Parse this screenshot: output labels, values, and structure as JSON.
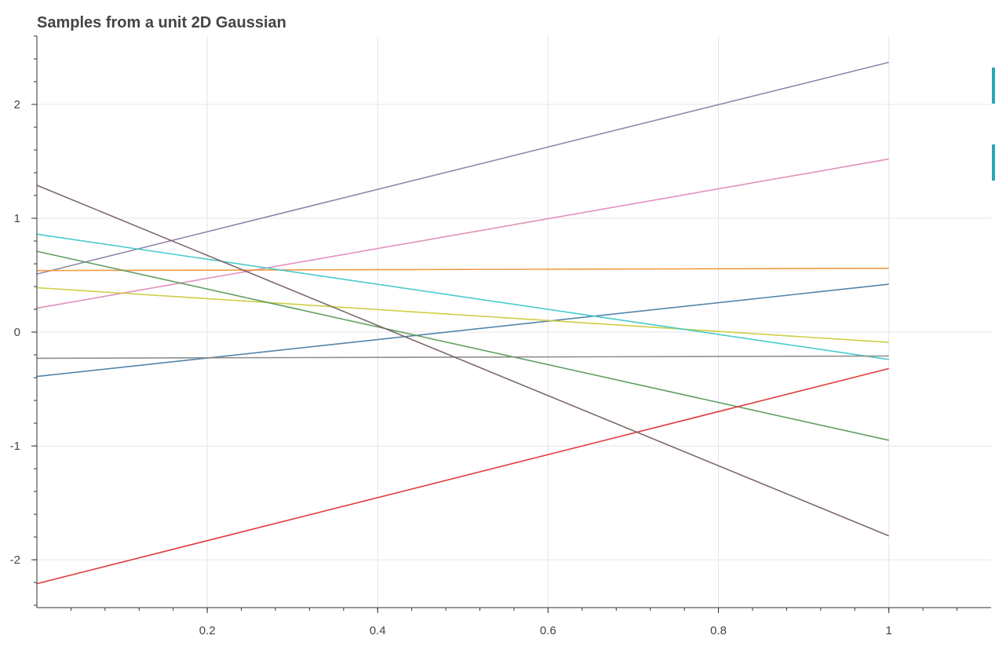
{
  "chart_data": {
    "type": "line",
    "title": "Samples from a unit 2D Gaussian",
    "xlabel": "",
    "ylabel": "",
    "xlim": [
      0.0,
      1.12
    ],
    "ylim": [
      -2.42,
      2.6
    ],
    "grid": true,
    "legend": "none",
    "x_ticks": [
      0.2,
      0.4,
      0.6,
      0.8,
      1
    ],
    "x_tick_labels": [
      "0.2",
      "0.4",
      "0.6",
      "0.8",
      "1"
    ],
    "y_ticks": [
      -2,
      -1,
      0,
      1,
      2
    ],
    "y_tick_labels": [
      "-2",
      "-1",
      "0",
      "1",
      "2"
    ],
    "x": [
      0.0,
      1.0
    ],
    "series": [
      {
        "color": "#8c7fa6",
        "values": [
          0.51,
          2.37
        ]
      },
      {
        "color": "#e08ab8",
        "values": [
          0.21,
          1.52
        ]
      },
      {
        "color": "#f0973c",
        "values": [
          0.54,
          0.56
        ]
      },
      {
        "color": "#4a7fa8",
        "values": [
          -0.39,
          0.42
        ]
      },
      {
        "color": "#cbcb3a",
        "values": [
          0.39,
          -0.09
        ]
      },
      {
        "color": "#3ec8c8",
        "values": [
          0.86,
          -0.24
        ]
      },
      {
        "color": "#5a9a5a",
        "values": [
          0.71,
          -0.95
        ]
      },
      {
        "color": "#888888",
        "values": [
          -0.23,
          -0.21
        ]
      },
      {
        "color": "#e03030",
        "values": [
          -2.21,
          -0.32
        ]
      },
      {
        "color": "#7a6262",
        "values": [
          1.29,
          -1.79
        ]
      }
    ]
  },
  "colors": {
    "grid": "#e5e5ea",
    "axis": "#333333",
    "tool_accent": "#2aa7b8"
  }
}
